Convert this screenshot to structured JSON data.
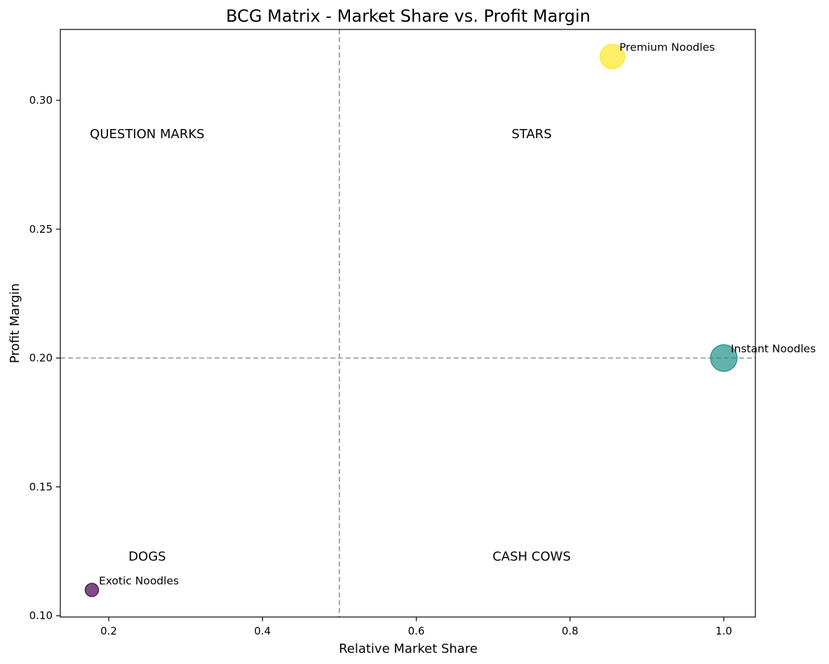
{
  "chart_data": {
    "type": "scatter",
    "title": "BCG Matrix - Market Share vs. Profit Margin",
    "xlabel": "Relative Market Share",
    "ylabel": "Profit Margin",
    "xlim": [
      0.137,
      1.041
    ],
    "ylim": [
      0.0995,
      0.3275
    ],
    "xticks": [
      0.2,
      0.4,
      0.6,
      0.8,
      1.0
    ],
    "xtick_labels": [
      "0.2",
      "0.4",
      "0.6",
      "0.8",
      "1.0"
    ],
    "yticks": [
      0.1,
      0.15,
      0.2,
      0.25,
      0.3
    ],
    "ytick_labels": [
      "0.10",
      "0.15",
      "0.20",
      "0.25",
      "0.30"
    ],
    "grid": false,
    "reference_lines": {
      "x": 0.5,
      "y": 0.2
    },
    "quadrant_labels": [
      {
        "text": "QUESTION MARKS",
        "x": 0.25,
        "y": 0.287
      },
      {
        "text": "STARS",
        "x": 0.75,
        "y": 0.287
      },
      {
        "text": "DOGS",
        "x": 0.25,
        "y": 0.123
      },
      {
        "text": "CASH COWS",
        "x": 0.75,
        "y": 0.123
      }
    ],
    "points": [
      {
        "label": "Premium Noodles",
        "x": 0.855,
        "y": 0.317,
        "size": 0.85,
        "color": "#fde725"
      },
      {
        "label": "Instant Noodles",
        "x": 1.0,
        "y": 0.2,
        "size": 1.0,
        "color": "#21918c"
      },
      {
        "label": "Exotic Noodles",
        "x": 0.178,
        "y": 0.11,
        "size": 0.25,
        "color": "#440154"
      }
    ]
  }
}
